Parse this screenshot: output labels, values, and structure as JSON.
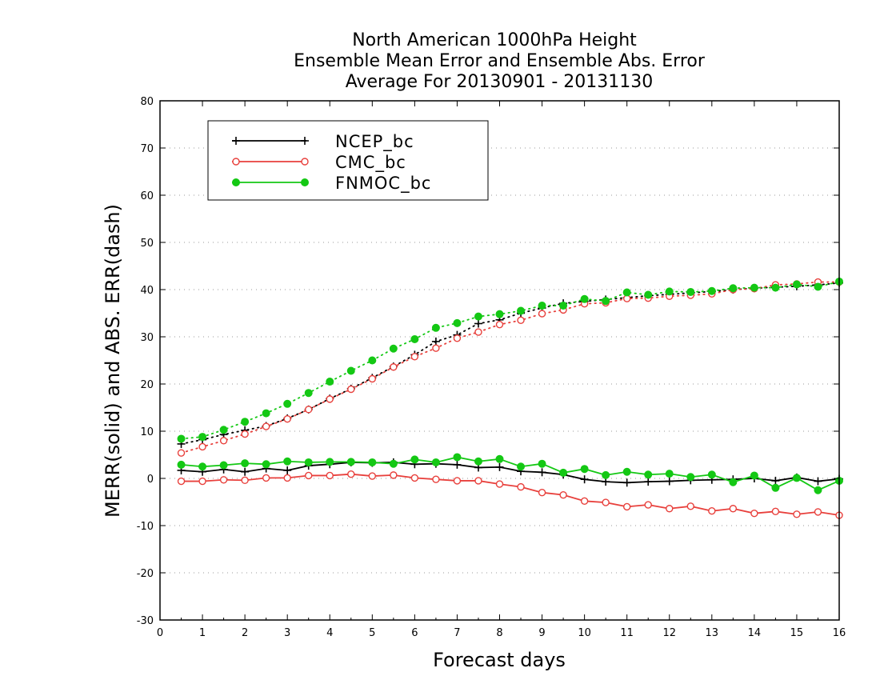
{
  "chart_data": {
    "type": "line",
    "title_lines": [
      "North American 1000hPa Height",
      "Ensemble Mean Error and Ensemble Abs. Error",
      "Average For 20130901 - 20131130"
    ],
    "xlabel": "Forecast days",
    "ylabel": "MERR(solid) and ABS. ERR(dash)",
    "xlim": [
      0,
      16
    ],
    "ylim": [
      -30,
      80
    ],
    "x_ticks": [
      0,
      1,
      2,
      3,
      4,
      5,
      6,
      7,
      8,
      9,
      10,
      11,
      12,
      13,
      14,
      15,
      16
    ],
    "y_ticks": [
      -30,
      -20,
      -10,
      0,
      10,
      20,
      30,
      40,
      50,
      60,
      70,
      80
    ],
    "grid": true,
    "legend_position": "top-left",
    "x": [
      0.5,
      1.0,
      1.5,
      2.0,
      2.5,
      3.0,
      3.5,
      4.0,
      4.5,
      5.0,
      5.5,
      6.0,
      6.5,
      7.0,
      7.5,
      8.0,
      8.5,
      9.0,
      9.5,
      10.0,
      10.5,
      11.0,
      11.5,
      12.0,
      12.5,
      13.0,
      13.5,
      14.0,
      14.5,
      15.0,
      15.5,
      16.0
    ],
    "series": [
      {
        "name": "NCEP_bc",
        "color": "#000000",
        "marker": "plus",
        "merr": [
          1.7,
          1.4,
          1.9,
          1.4,
          2.1,
          1.7,
          2.7,
          3.0,
          3.4,
          3.3,
          3.4,
          3.0,
          3.1,
          2.9,
          2.3,
          2.4,
          1.5,
          1.3,
          0.8,
          -0.2,
          -0.7,
          -0.9,
          -0.7,
          -0.6,
          -0.4,
          -0.3,
          -0.2,
          0.0,
          -0.5,
          0.2,
          -0.6,
          -0.1
        ],
        "abs_err": [
          7.3,
          8.2,
          9.3,
          10.2,
          11.1,
          12.7,
          14.6,
          16.9,
          19.0,
          21.3,
          23.7,
          26.2,
          29.0,
          30.4,
          32.8,
          33.6,
          35.0,
          36.1,
          37.1,
          37.5,
          37.9,
          38.3,
          38.7,
          39.0,
          39.3,
          39.6,
          40.0,
          40.3,
          40.5,
          40.7,
          41.0,
          41.4
        ]
      },
      {
        "name": "CMC_bc",
        "color": "#e8403c",
        "marker": "open-circle",
        "merr": [
          -0.6,
          -0.6,
          -0.3,
          -0.4,
          0.1,
          0.1,
          0.6,
          0.6,
          0.9,
          0.5,
          0.7,
          0.1,
          -0.2,
          -0.5,
          -0.5,
          -1.2,
          -1.8,
          -3.0,
          -3.5,
          -4.8,
          -5.1,
          -6.0,
          -5.6,
          -6.4,
          -5.9,
          -6.9,
          -6.4,
          -7.4,
          -7.0,
          -7.6,
          -7.1,
          -7.8
        ],
        "abs_err": [
          5.4,
          6.7,
          8.0,
          9.4,
          11.0,
          12.6,
          14.6,
          16.8,
          18.9,
          21.1,
          23.6,
          25.8,
          27.6,
          29.7,
          31.0,
          32.6,
          33.5,
          34.9,
          35.7,
          37.0,
          37.2,
          38.1,
          38.2,
          38.6,
          38.8,
          39.1,
          40.0,
          40.2,
          41.0,
          41.2,
          41.6,
          41.6
        ]
      },
      {
        "name": "FNMOC_bc",
        "color": "#14c814",
        "marker": "filled-circle",
        "merr": [
          2.9,
          2.5,
          2.8,
          3.2,
          3.0,
          3.6,
          3.4,
          3.5,
          3.5,
          3.4,
          3.1,
          4.0,
          3.4,
          4.5,
          3.6,
          4.1,
          2.5,
          3.1,
          1.2,
          2.0,
          0.7,
          1.4,
          0.8,
          1.0,
          0.3,
          0.8,
          -0.8,
          0.6,
          -2.0,
          0.1,
          -2.5,
          -0.5
        ],
        "abs_err": [
          8.4,
          8.8,
          10.3,
          12.0,
          13.8,
          15.8,
          18.1,
          20.5,
          22.8,
          25.0,
          27.5,
          29.5,
          31.9,
          32.9,
          34.3,
          34.8,
          35.5,
          36.6,
          36.6,
          38.0,
          37.6,
          39.4,
          38.9,
          39.6,
          39.5,
          39.7,
          40.3,
          40.4,
          40.4,
          41.1,
          40.6,
          41.7
        ]
      }
    ]
  }
}
